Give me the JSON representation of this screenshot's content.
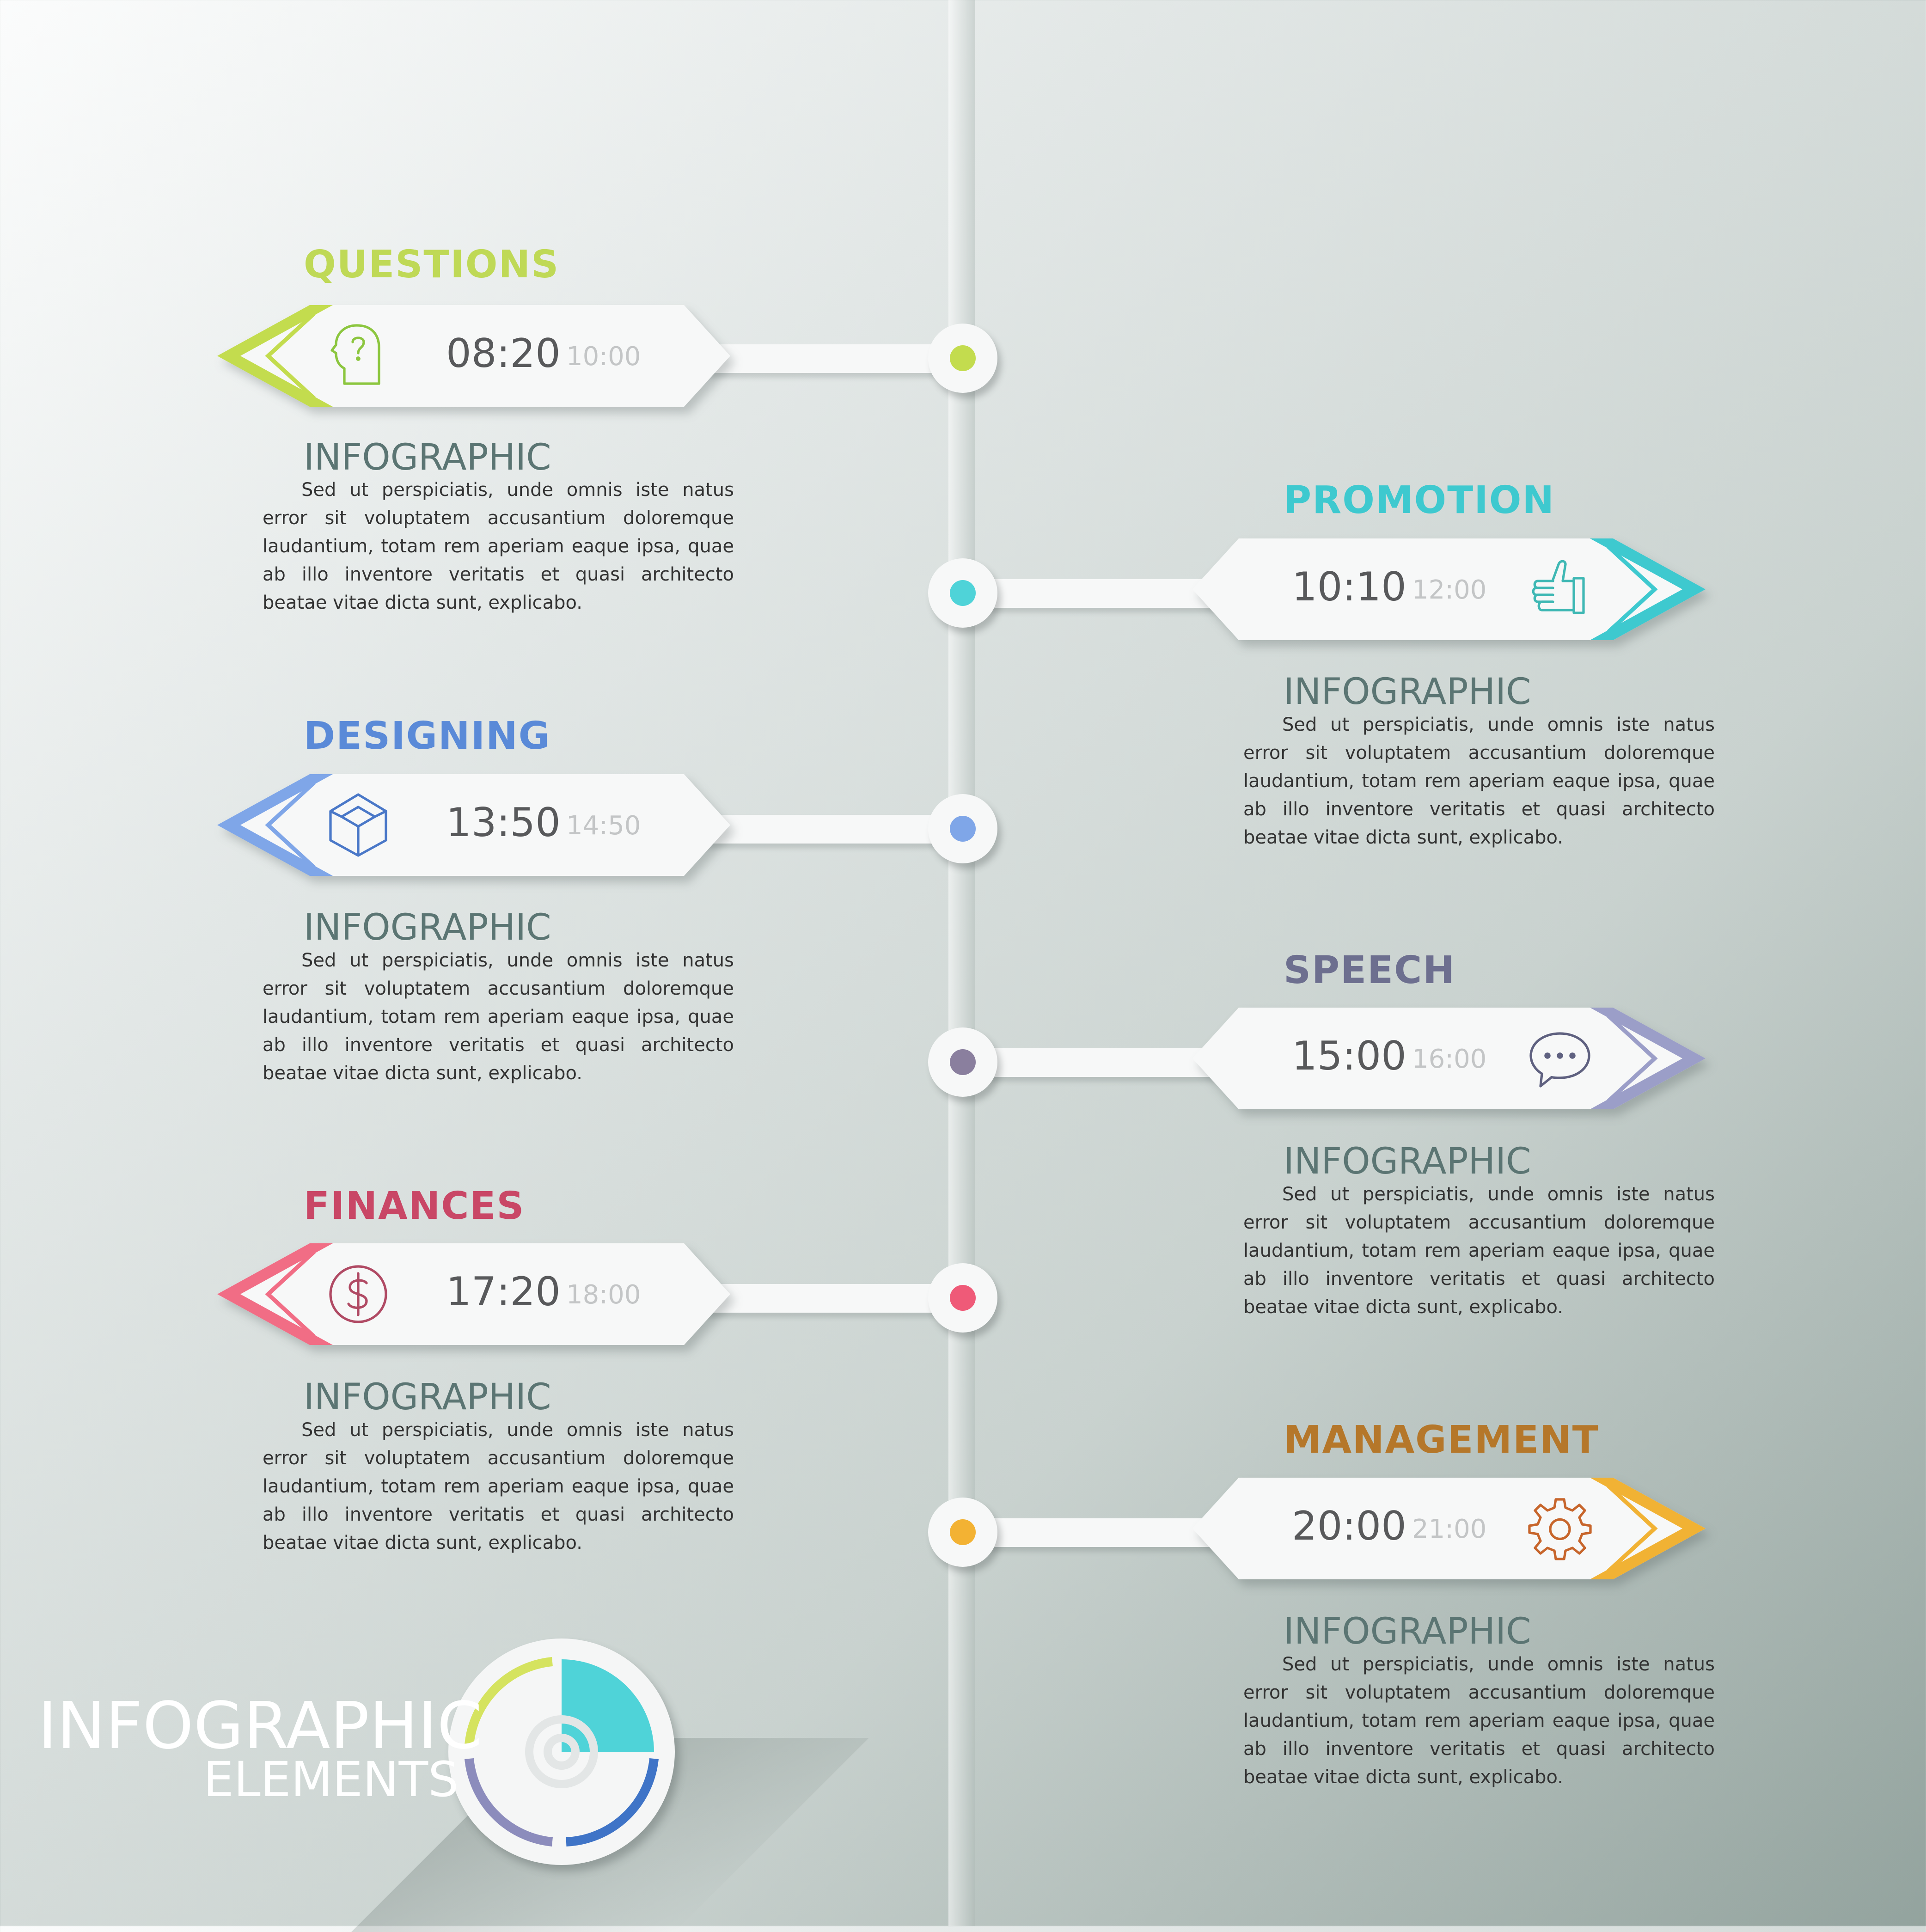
{
  "steps": [
    {
      "label": "QUESTIONS",
      "time": "08:20",
      "time_end": "10:00",
      "heading": "INFOGRAPHIC",
      "body": "Sed ut perspiciatis, unde omnis iste natus error sit voluptatem accusantium doloremque laudantium, totam rem aperiam eaque ipsa, quae ab illo inventore veritatis et quasi architecto beatae vitae dicta sunt, explicabo.",
      "color": "#c3dc4e",
      "icon": "head-question-icon",
      "side": "left"
    },
    {
      "label": "PROMOTION",
      "time": "10:10",
      "time_end": "12:00",
      "heading": "INFOGRAPHIC",
      "body": "Sed ut perspiciatis, unde omnis iste natus error sit voluptatem accusantium doloremque laudantium, totam rem aperiam eaque ipsa, quae ab illo inventore veritatis et quasi architecto beatae vitae dicta sunt, explicabo.",
      "color": "#3ec9cf",
      "icon": "thumbs-up-icon",
      "side": "right"
    },
    {
      "label": "DESIGNING",
      "time": "13:50",
      "time_end": "14:50",
      "heading": "INFOGRAPHIC",
      "body": "Sed ut perspiciatis, unde omnis iste natus error sit voluptatem accusantium doloremque laudantium, totam rem aperiam eaque ipsa, quae ab illo inventore veritatis et quasi architecto beatae vitae dicta sunt, explicabo.",
      "color": "#5a8ad8",
      "icon": "cube-icon",
      "side": "left"
    },
    {
      "label": "SPEECH",
      "time": "15:00",
      "time_end": "16:00",
      "heading": "INFOGRAPHIC",
      "body": "Sed ut perspiciatis, unde omnis iste natus error sit voluptatem accusantium doloremque laudantium, totam rem aperiam eaque ipsa, quae ab illo inventore veritatis et quasi architecto beatae vitae dicta sunt, explicabo.",
      "color": "#6d6f8f",
      "icon": "speech-bubble-icon",
      "side": "right"
    },
    {
      "label": "FINANCES",
      "time": "17:20",
      "time_end": "18:00",
      "heading": "INFOGRAPHIC",
      "body": "Sed ut perspiciatis, unde omnis iste natus error sit voluptatem accusantium doloremque laudantium, totam rem aperiam eaque ipsa, quae ab illo inventore veritatis et quasi architecto beatae vitae dicta sunt, explicabo.",
      "color": "#c94766",
      "icon": "dollar-coin-icon",
      "side": "left"
    },
    {
      "label": "MANAGEMENT",
      "time": "20:00",
      "time_end": "21:00",
      "heading": "INFOGRAPHIC",
      "body": "Sed ut perspiciatis, unde omnis iste natus error sit voluptatem accusantium doloremque laudantium, totam rem aperiam eaque ipsa, quae ab illo inventore veritatis et quasi architecto beatae vitae dicta sunt, explicabo.",
      "color": "#b5772a",
      "icon": "gear-icon",
      "side": "right"
    }
  ],
  "brand": {
    "title": "INFOGRAPHIC",
    "subtitle": "ELEMENTS"
  },
  "badge_colors": {
    "top_left": "#d5e35f",
    "top_right": "#4fd3d8",
    "bottom_left": "#8c8cbc",
    "bottom_right": "#3f74c7"
  }
}
